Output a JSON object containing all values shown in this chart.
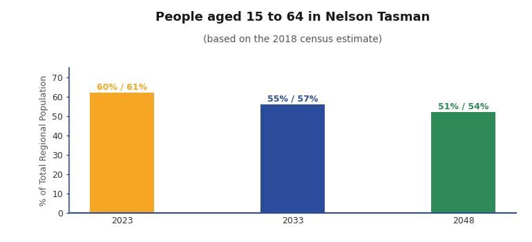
{
  "title": "People aged 15 to 64 in Nelson Tasman",
  "subtitle": "(based on the 2018 census estimate)",
  "categories": [
    "2023",
    "2033",
    "2048"
  ],
  "values": [
    62,
    56,
    52
  ],
  "bar_colors": [
    "#F5A623",
    "#2B4C9B",
    "#2E8B57"
  ],
  "bar_labels": [
    "60% / 61%",
    "55% / 57%",
    "51% / 54%"
  ],
  "label_colors": [
    "#F5A623",
    "#2B4C9B",
    "#2E8B57"
  ],
  "ylabel": "% of Total Regional Population",
  "ylim": [
    0,
    75
  ],
  "yticks": [
    0,
    10,
    20,
    30,
    40,
    50,
    60,
    70
  ],
  "title_fontsize": 13,
  "subtitle_fontsize": 10,
  "label_fontsize": 9,
  "ylabel_fontsize": 9,
  "tick_fontsize": 9,
  "background_color": "#ffffff",
  "bar_width": 0.38,
  "spine_color": "#2B4C9B",
  "tick_color": "#2B4C9B",
  "ylabel_color": "#555555",
  "xtick_color": "#333333",
  "ytick_color": "#333333"
}
